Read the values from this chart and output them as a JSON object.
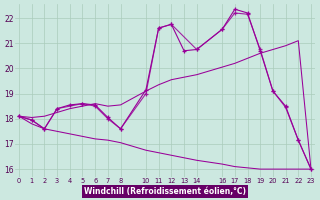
{
  "bg_color": "#cce8e0",
  "plot_bg": "#cce8e0",
  "xlabel_bg": "#660066",
  "xlabel_fg": "#ffffff",
  "grid_color": "#aaccbb",
  "line_color": "#990099",
  "xlim": [
    -0.3,
    23.3
  ],
  "ylim": [
    15.7,
    22.55
  ],
  "xticks": [
    0,
    1,
    2,
    3,
    4,
    5,
    6,
    7,
    8,
    10,
    11,
    12,
    13,
    14,
    16,
    17,
    18,
    19,
    20,
    21,
    22,
    23
  ],
  "yticks": [
    16,
    17,
    18,
    19,
    20,
    21,
    22
  ],
  "xlabel": "Windchill (Refroidissement éolien,°C)",
  "line1_x": [
    0,
    1,
    2,
    3,
    4,
    5,
    6,
    7,
    8,
    10,
    11,
    12,
    13,
    14,
    16,
    17,
    18,
    19,
    20,
    21,
    22,
    23
  ],
  "line1_y": [
    18.1,
    17.8,
    17.6,
    17.5,
    17.4,
    17.3,
    17.2,
    17.15,
    17.05,
    16.75,
    16.65,
    16.55,
    16.45,
    16.35,
    16.2,
    16.1,
    16.05,
    16.0,
    16.0,
    16.0,
    16.0,
    16.0
  ],
  "line2_x": [
    0,
    1,
    2,
    3,
    4,
    5,
    6,
    7,
    8,
    10,
    11,
    12,
    13,
    14,
    16,
    17,
    18,
    19,
    20,
    21,
    22,
    23
  ],
  "line2_y": [
    18.1,
    18.05,
    18.1,
    18.25,
    18.4,
    18.5,
    18.6,
    18.5,
    18.55,
    19.1,
    19.35,
    19.55,
    19.65,
    19.75,
    20.05,
    20.2,
    20.4,
    20.6,
    20.75,
    20.9,
    21.1,
    16.0
  ],
  "line3_x": [
    0,
    1,
    2,
    3,
    4,
    5,
    6,
    7,
    8,
    10,
    11,
    12,
    13,
    14,
    16,
    17,
    18,
    19,
    20,
    21,
    22,
    23
  ],
  "line3_y": [
    18.1,
    17.95,
    17.6,
    18.4,
    18.55,
    18.6,
    18.55,
    18.05,
    17.6,
    19.15,
    21.6,
    21.75,
    20.7,
    20.75,
    21.55,
    22.35,
    22.2,
    20.7,
    19.1,
    18.5,
    17.15,
    16.0
  ],
  "line4_x": [
    0,
    1,
    2,
    3,
    5,
    6,
    7,
    8,
    10,
    11,
    12,
    14,
    16,
    17,
    18,
    19,
    20,
    21,
    22,
    23
  ],
  "line4_y": [
    18.1,
    17.95,
    17.6,
    18.4,
    18.6,
    18.5,
    18.0,
    17.6,
    19.0,
    21.6,
    21.75,
    20.75,
    21.55,
    22.2,
    22.15,
    20.75,
    19.1,
    18.45,
    17.15,
    16.0
  ]
}
